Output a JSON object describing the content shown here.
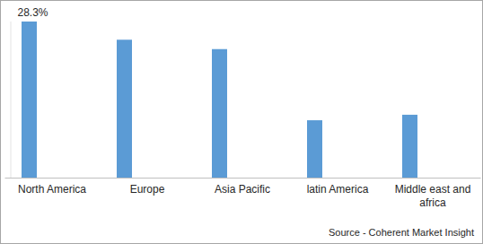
{
  "chart_data": {
    "type": "bar",
    "categories": [
      "North America",
      "Europe",
      "Asia Pacific",
      "latin America",
      "Middle east and africa"
    ],
    "values": [
      28.3,
      25.0,
      23.3,
      10.4,
      11.4
    ],
    "value_labels": [
      "28.3%",
      null,
      null,
      null,
      null
    ],
    "data_labels": true,
    "color": "#5b9bd5",
    "ylim": [
      0,
      28.3
    ],
    "tick_labels": "x",
    "grid": false,
    "source": "Source - Coherent Market Insight"
  }
}
